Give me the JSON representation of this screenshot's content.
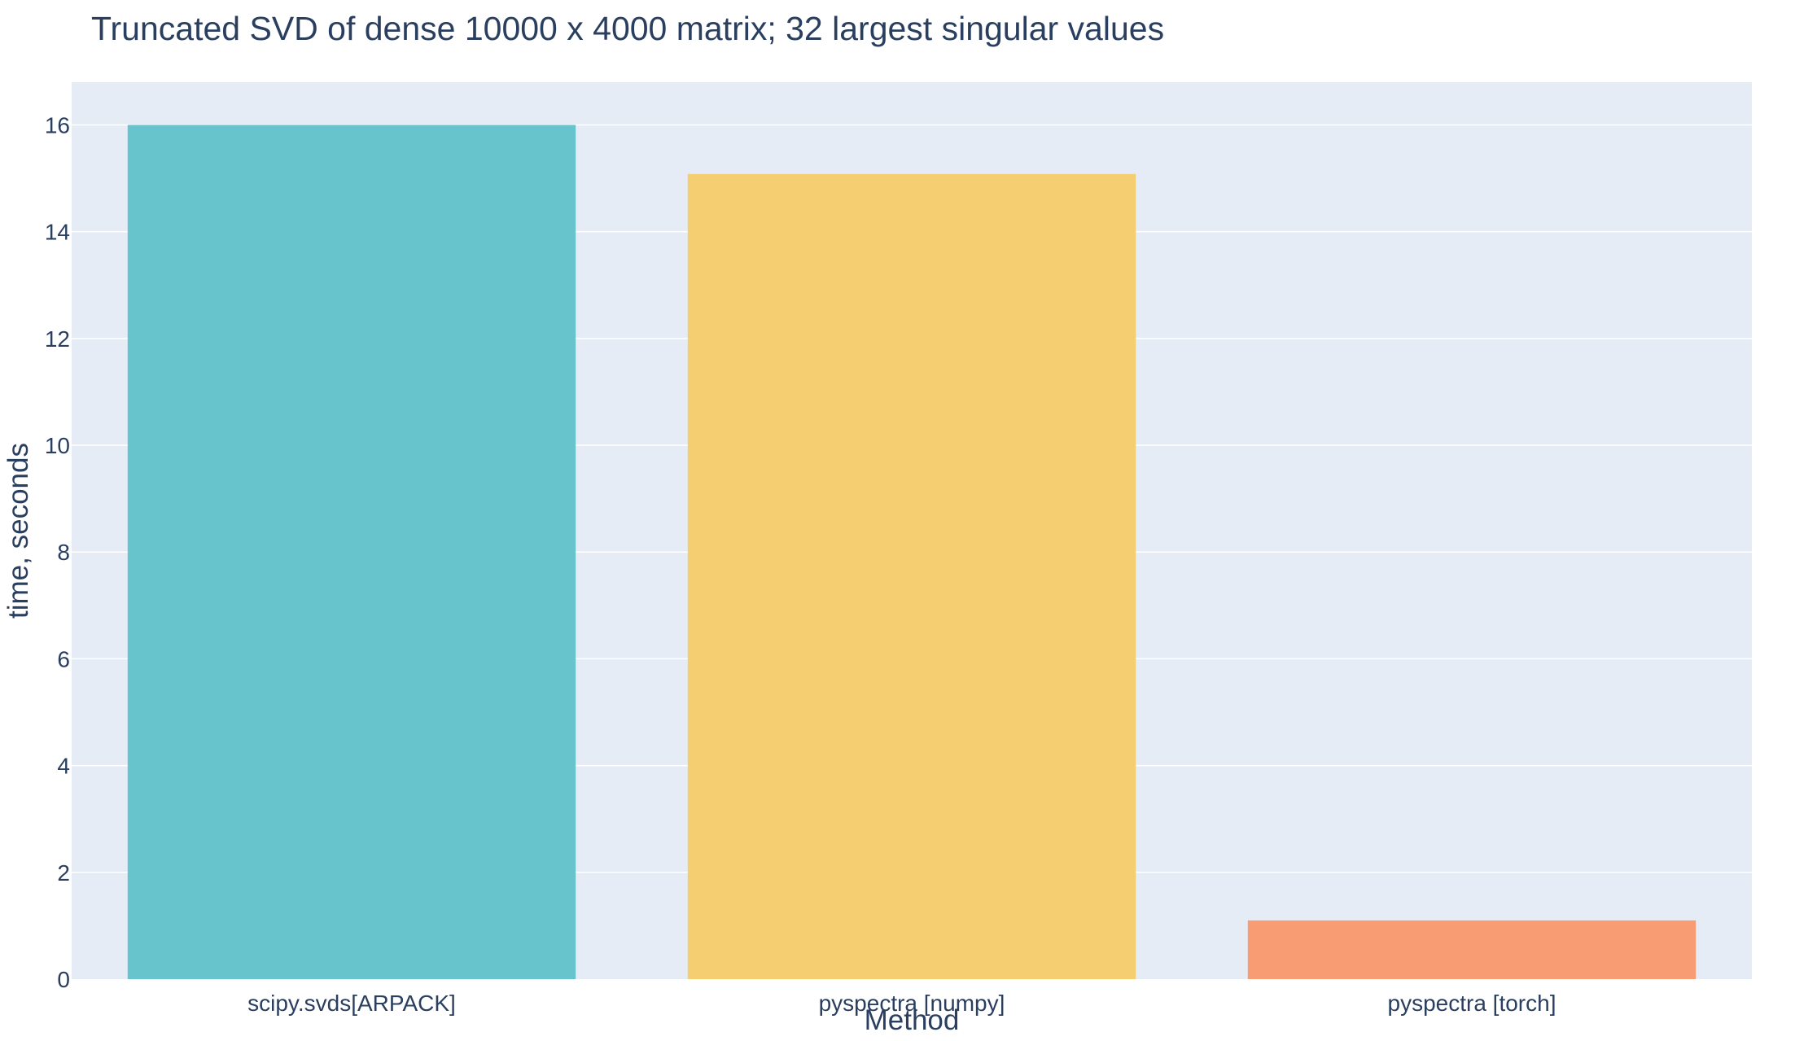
{
  "chart_data": {
    "type": "bar",
    "title": "Truncated SVD of dense 10000 x 4000 matrix; 32 largest singular values",
    "xlabel": "Method",
    "ylabel": "time, seconds",
    "categories": [
      "scipy.svds[ARPACK]",
      "pyspectra [numpy]",
      "pyspectra [torch]"
    ],
    "values": [
      16.0,
      15.08,
      1.1
    ],
    "bar_colors": [
      "#67c4cc",
      "#f5ce72",
      "#f89c74"
    ],
    "ylim": [
      0,
      16.8
    ],
    "yticks": [
      0,
      2,
      4,
      6,
      8,
      10,
      12,
      14,
      16
    ],
    "grid": true,
    "legend": "none",
    "colors": {
      "plot_background": "#e5ecf6",
      "gridline": "#ffffff",
      "text": "#2a3f5f"
    }
  }
}
